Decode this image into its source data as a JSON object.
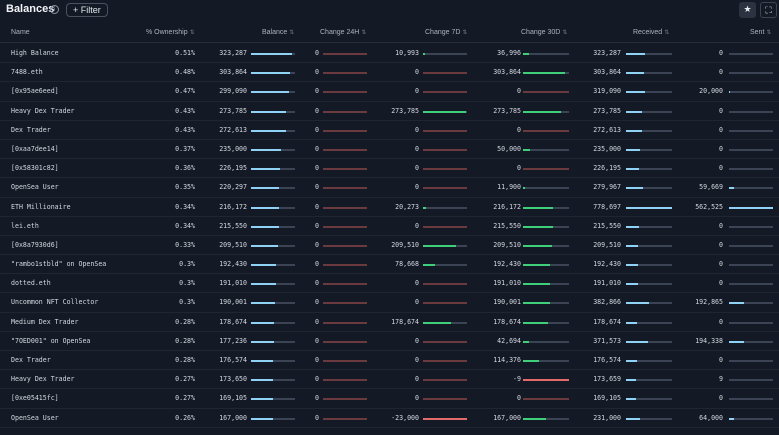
{
  "header": {
    "title": "Balances",
    "filter_label": "+ Filter"
  },
  "columns": {
    "name": "Name",
    "ownership": "% Ownership",
    "balance": "Balance",
    "change24h": "Change 24H",
    "change7d": "Change 7D",
    "change30d": "Change 30D",
    "received": "Received",
    "sent": "Sent"
  },
  "icons": {
    "info": "info-icon",
    "sort": "sort-icon",
    "star": "star-icon",
    "expand": "expand-icon"
  },
  "rows": [
    {
      "name": "High Balance",
      "ownership": "0.51%",
      "balance": "323,287",
      "balance_level": 0.94,
      "c24": "0",
      "c7": "10,993",
      "c7_dir": "up",
      "c7_level": 0.04,
      "c30": "36,996",
      "c30_dir": "up",
      "c30_level": 0.12,
      "received": "323,287",
      "received_level": 0.42,
      "sent": "0",
      "sent_level": 0.0
    },
    {
      "name": "7488.eth",
      "ownership": "0.48%",
      "balance": "303,864",
      "balance_level": 0.88,
      "c24": "0",
      "c7": "0",
      "c7_dir": "flat",
      "c7_level": 0.0,
      "c30": "303,864",
      "c30_dir": "up",
      "c30_level": 0.92,
      "received": "303,864",
      "received_level": 0.39,
      "sent": "0",
      "sent_level": 0.0
    },
    {
      "name": "[0x95ae6eed]",
      "ownership": "0.47%",
      "balance": "299,090",
      "balance_level": 0.87,
      "c24": "0",
      "c7": "0",
      "c7_dir": "flat",
      "c7_level": 0.0,
      "c30": "0",
      "c30_dir": "flat",
      "c30_level": 0.0,
      "received": "319,090",
      "received_level": 0.41,
      "sent": "20,000",
      "sent_level": 0.03
    },
    {
      "name": "Heavy Dex Trader",
      "ownership": "0.43%",
      "balance": "273,785",
      "balance_level": 0.8,
      "c24": "0",
      "c7": "273,785",
      "c7_dir": "up",
      "c7_level": 0.98,
      "c30": "273,785",
      "c30_dir": "up",
      "c30_level": 0.83,
      "received": "273,785",
      "received_level": 0.35,
      "sent": "0",
      "sent_level": 0.0
    },
    {
      "name": "Dex Trader",
      "ownership": "0.43%",
      "balance": "272,613",
      "balance_level": 0.79,
      "c24": "0",
      "c7": "0",
      "c7_dir": "flat",
      "c7_level": 0.0,
      "c30": "0",
      "c30_dir": "flat",
      "c30_level": 0.0,
      "received": "272,613",
      "received_level": 0.35,
      "sent": "0",
      "sent_level": 0.0
    },
    {
      "name": "[0xaa7dee14]",
      "ownership": "0.37%",
      "balance": "235,000",
      "balance_level": 0.68,
      "c24": "0",
      "c7": "0",
      "c7_dir": "flat",
      "c7_level": 0.0,
      "c30": "50,000",
      "c30_dir": "up",
      "c30_level": 0.15,
      "received": "235,000",
      "received_level": 0.3,
      "sent": "0",
      "sent_level": 0.0
    },
    {
      "name": "[0x58301c82]",
      "ownership": "0.36%",
      "balance": "226,195",
      "balance_level": 0.66,
      "c24": "0",
      "c7": "0",
      "c7_dir": "flat",
      "c7_level": 0.0,
      "c30": "0",
      "c30_dir": "flat",
      "c30_level": 0.0,
      "received": "226,195",
      "received_level": 0.29,
      "sent": "0",
      "sent_level": 0.0
    },
    {
      "name": "OpenSea User",
      "ownership": "0.35%",
      "balance": "220,297",
      "balance_level": 0.64,
      "c24": "0",
      "c7": "0",
      "c7_dir": "flat",
      "c7_level": 0.0,
      "c30": "11,900",
      "c30_dir": "up",
      "c30_level": 0.04,
      "received": "279,967",
      "received_level": 0.36,
      "sent": "59,669",
      "sent_level": 0.11
    },
    {
      "name": "ETH Millionaire",
      "ownership": "0.34%",
      "balance": "216,172",
      "balance_level": 0.63,
      "c24": "0",
      "c7": "20,273",
      "c7_dir": "up",
      "c7_level": 0.07,
      "c30": "216,172",
      "c30_dir": "up",
      "c30_level": 0.66,
      "received": "778,697",
      "received_level": 1.0,
      "sent": "562,525",
      "sent_level": 1.0
    },
    {
      "name": "lei.eth",
      "ownership": "0.34%",
      "balance": "215,550",
      "balance_level": 0.63,
      "c24": "0",
      "c7": "0",
      "c7_dir": "flat",
      "c7_level": 0.0,
      "c30": "215,550",
      "c30_dir": "up",
      "c30_level": 0.65,
      "received": "215,550",
      "received_level": 0.28,
      "sent": "0",
      "sent_level": 0.0
    },
    {
      "name": "[0x8a7930d6]",
      "ownership": "0.33%",
      "balance": "209,510",
      "balance_level": 0.61,
      "c24": "0",
      "c7": "209,510",
      "c7_dir": "up",
      "c7_level": 0.75,
      "c30": "209,510",
      "c30_dir": "up",
      "c30_level": 0.64,
      "received": "209,510",
      "received_level": 0.27,
      "sent": "0",
      "sent_level": 0.0
    },
    {
      "name": "\"rambo1stbld\" on OpenSea",
      "ownership": "0.3%",
      "balance": "192,430",
      "balance_level": 0.56,
      "c24": "0",
      "c7": "78,668",
      "c7_dir": "up",
      "c7_level": 0.28,
      "c30": "192,430",
      "c30_dir": "up",
      "c30_level": 0.58,
      "received": "192,430",
      "received_level": 0.25,
      "sent": "0",
      "sent_level": 0.0
    },
    {
      "name": "dotted.eth",
      "ownership": "0.3%",
      "balance": "191,010",
      "balance_level": 0.56,
      "c24": "0",
      "c7": "0",
      "c7_dir": "flat",
      "c7_level": 0.0,
      "c30": "191,010",
      "c30_dir": "up",
      "c30_level": 0.58,
      "received": "191,010",
      "received_level": 0.25,
      "sent": "0",
      "sent_level": 0.0
    },
    {
      "name": "Uncommon NFT Collector",
      "ownership": "0.3%",
      "balance": "190,001",
      "balance_level": 0.55,
      "c24": "0",
      "c7": "0",
      "c7_dir": "flat",
      "c7_level": 0.0,
      "c30": "190,001",
      "c30_dir": "up",
      "c30_level": 0.58,
      "received": "382,866",
      "received_level": 0.49,
      "sent": "192,865",
      "sent_level": 0.34
    },
    {
      "name": "Medium Dex Trader",
      "ownership": "0.28%",
      "balance": "178,674",
      "balance_level": 0.52,
      "c24": "0",
      "c7": "178,674",
      "c7_dir": "up",
      "c7_level": 0.64,
      "c30": "178,674",
      "c30_dir": "up",
      "c30_level": 0.54,
      "received": "178,674",
      "received_level": 0.23,
      "sent": "0",
      "sent_level": 0.0
    },
    {
      "name": "\"7OED001\" on OpenSea",
      "ownership": "0.28%",
      "balance": "177,236",
      "balance_level": 0.52,
      "c24": "0",
      "c7": "0",
      "c7_dir": "flat",
      "c7_level": 0.0,
      "c30": "42,694",
      "c30_dir": "up",
      "c30_level": 0.13,
      "received": "371,573",
      "received_level": 0.48,
      "sent": "194,338",
      "sent_level": 0.35
    },
    {
      "name": "Dex Trader",
      "ownership": "0.28%",
      "balance": "176,574",
      "balance_level": 0.51,
      "c24": "0",
      "c7": "0",
      "c7_dir": "flat",
      "c7_level": 0.0,
      "c30": "114,376",
      "c30_dir": "up",
      "c30_level": 0.35,
      "received": "176,574",
      "received_level": 0.23,
      "sent": "0",
      "sent_level": 0.0
    },
    {
      "name": "Heavy Dex Trader",
      "ownership": "0.27%",
      "balance": "173,650",
      "balance_level": 0.51,
      "c24": "0",
      "c7": "0",
      "c7_dir": "flat",
      "c7_level": 0.0,
      "c30": "-9",
      "c30_dir": "down",
      "c30_level": 1.0,
      "received": "173,659",
      "received_level": 0.22,
      "sent": "9",
      "sent_level": 0.0
    },
    {
      "name": "[0xe05415fc]",
      "ownership": "0.27%",
      "balance": "169,105",
      "balance_level": 0.49,
      "c24": "0",
      "c7": "0",
      "c7_dir": "flat",
      "c7_level": 0.0,
      "c30": "0",
      "c30_dir": "flat",
      "c30_level": 0.0,
      "received": "169,105",
      "received_level": 0.22,
      "sent": "0",
      "sent_level": 0.0
    },
    {
      "name": "OpenSea User",
      "ownership": "0.26%",
      "balance": "167,000",
      "balance_level": 0.49,
      "c24": "0",
      "c7": "-23,000",
      "c7_dir": "down",
      "c7_level": 1.0,
      "c30": "167,000",
      "c30_dir": "up",
      "c30_level": 0.51,
      "received": "231,000",
      "received_level": 0.3,
      "sent": "64,000",
      "sent_level": 0.11
    }
  ]
}
